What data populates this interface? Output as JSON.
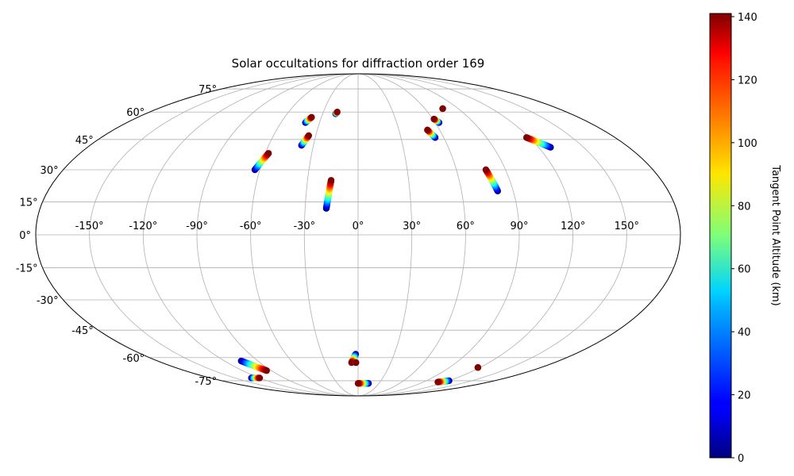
{
  "chart_data": {
    "type": "scatter",
    "projection": "mollweide",
    "title": "Solar occultations for diffraction order 169",
    "xlabel": "",
    "ylabel": "",
    "grid": true,
    "lon_ticks": [
      "-150°",
      "-120°",
      "-90°",
      "-60°",
      "-30°",
      "0°",
      "30°",
      "60°",
      "90°",
      "120°",
      "150°"
    ],
    "lon_tick_values": [
      -150,
      -120,
      -90,
      -60,
      -30,
      0,
      30,
      60,
      90,
      120,
      150
    ],
    "lat_ticks": [
      "75°",
      "60°",
      "45°",
      "30°",
      "15°",
      "0°",
      "-15°",
      "-30°",
      "-45°",
      "-60°",
      "-75°"
    ],
    "lat_tick_values": [
      75,
      60,
      45,
      30,
      15,
      0,
      -15,
      -30,
      -45,
      -60,
      -75
    ],
    "colorbar": {
      "label": "Tangent Point Altitude (km)",
      "colormap": "jet",
      "range": [
        0,
        141
      ],
      "ticks": [
        "0",
        "20",
        "40",
        "60",
        "80",
        "100",
        "120",
        "140"
      ],
      "tick_values": [
        0,
        20,
        40,
        60,
        80,
        100,
        120,
        140
      ]
    },
    "occultations": [
      {
        "lon_start": -18,
        "lat_start": 12,
        "lon_end": -16,
        "lat_end": 25
      },
      {
        "lon_start": -63,
        "lat_start": 30,
        "lon_end": -58,
        "lat_end": 38
      },
      {
        "lon_start": -38,
        "lat_start": 42,
        "lon_end": -35,
        "lat_end": 47
      },
      {
        "lon_start": -41,
        "lat_start": 54,
        "lon_end": -38,
        "lat_end": 57
      },
      {
        "lon_start": -19,
        "lat_start": 59,
        "lon_end": -18,
        "lat_end": 60
      },
      {
        "lon_start": 54,
        "lat_start": 46,
        "lon_end": 51,
        "lat_end": 50
      },
      {
        "lon_start": 63,
        "lat_start": 54,
        "lon_end": 61,
        "lat_end": 56
      },
      {
        "lon_start": 81,
        "lat_start": 20,
        "lon_end": 78,
        "lat_end": 30
      },
      {
        "lon_start": 128,
        "lat_start": 41,
        "lon_end": 118,
        "lat_end": 46
      },
      {
        "lon_start": 76,
        "lat_start": 62,
        "lon_end": 76,
        "lat_end": 62
      },
      {
        "lon_start": -2,
        "lat_start": -58,
        "lon_end": -6,
        "lat_end": -63
      },
      {
        "lon_start": -2,
        "lat_start": -63,
        "lon_end": -2,
        "lat_end": -63
      },
      {
        "lon_start": -105,
        "lat_start": -62,
        "lon_end": -95,
        "lat_end": -68
      },
      {
        "lon_start": -130,
        "lat_start": -73,
        "lon_end": -120,
        "lat_end": -73
      },
      {
        "lon_start": 15,
        "lat_start": -77,
        "lon_end": 0,
        "lat_end": -77
      },
      {
        "lon_start": 120,
        "lat_start": -75,
        "lon_end": 110,
        "lat_end": -76
      },
      {
        "lon_start": 118,
        "lat_start": -66,
        "lon_end": 118,
        "lat_end": -66
      }
    ]
  }
}
